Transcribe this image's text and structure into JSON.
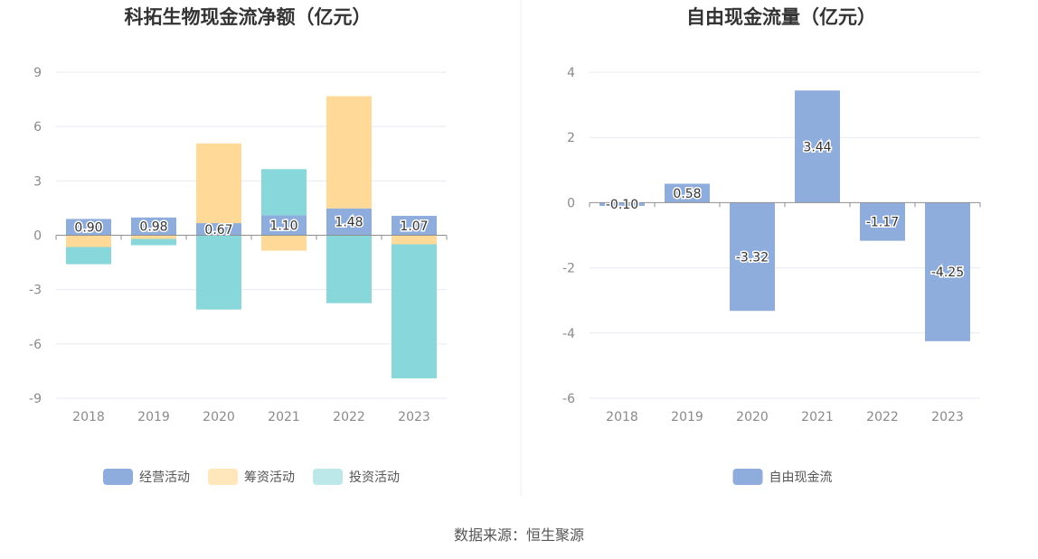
{
  "source_text": "数据来源：恒生聚源",
  "chart_data": [
    {
      "type": "bar",
      "stacked": true,
      "title": "科拓生物现金流净额（亿元）",
      "categories": [
        "2018",
        "2019",
        "2020",
        "2021",
        "2022",
        "2023"
      ],
      "ylim": [
        -9,
        9
      ],
      "yticks": [
        9,
        6,
        3,
        0,
        -3,
        -6,
        -9
      ],
      "grid": true,
      "legend_position": "bottom",
      "series": [
        {
          "name": "经营活动",
          "color": "#8eaddc",
          "values": [
            0.9,
            0.98,
            0.67,
            1.1,
            1.48,
            1.07
          ],
          "labels": [
            "0.90",
            "0.98",
            "0.67",
            "1.10",
            "1.48",
            "1.07"
          ]
        },
        {
          "name": "筹资活动",
          "color": "#ffd998",
          "values": [
            -0.65,
            -0.2,
            4.4,
            -0.85,
            6.2,
            -0.5
          ]
        },
        {
          "name": "投资活动",
          "color": "#88d7da",
          "values": [
            -0.95,
            -0.35,
            -4.1,
            2.55,
            -3.75,
            -7.4
          ]
        }
      ]
    },
    {
      "type": "bar",
      "title": "自由现金流量（亿元）",
      "categories": [
        "2018",
        "2019",
        "2020",
        "2021",
        "2022",
        "2023"
      ],
      "ylim": [
        -6,
        4
      ],
      "yticks": [
        4,
        2,
        0,
        -2,
        -4,
        -6
      ],
      "grid": true,
      "legend_position": "bottom",
      "series": [
        {
          "name": "自由现金流",
          "color": "#8eaddc",
          "values": [
            -0.1,
            0.58,
            -3.32,
            3.44,
            -1.17,
            -4.25
          ],
          "labels": [
            "-0.10",
            "0.58",
            "-3.32",
            "3.44",
            "-1.17",
            "-4.25"
          ]
        }
      ]
    }
  ]
}
